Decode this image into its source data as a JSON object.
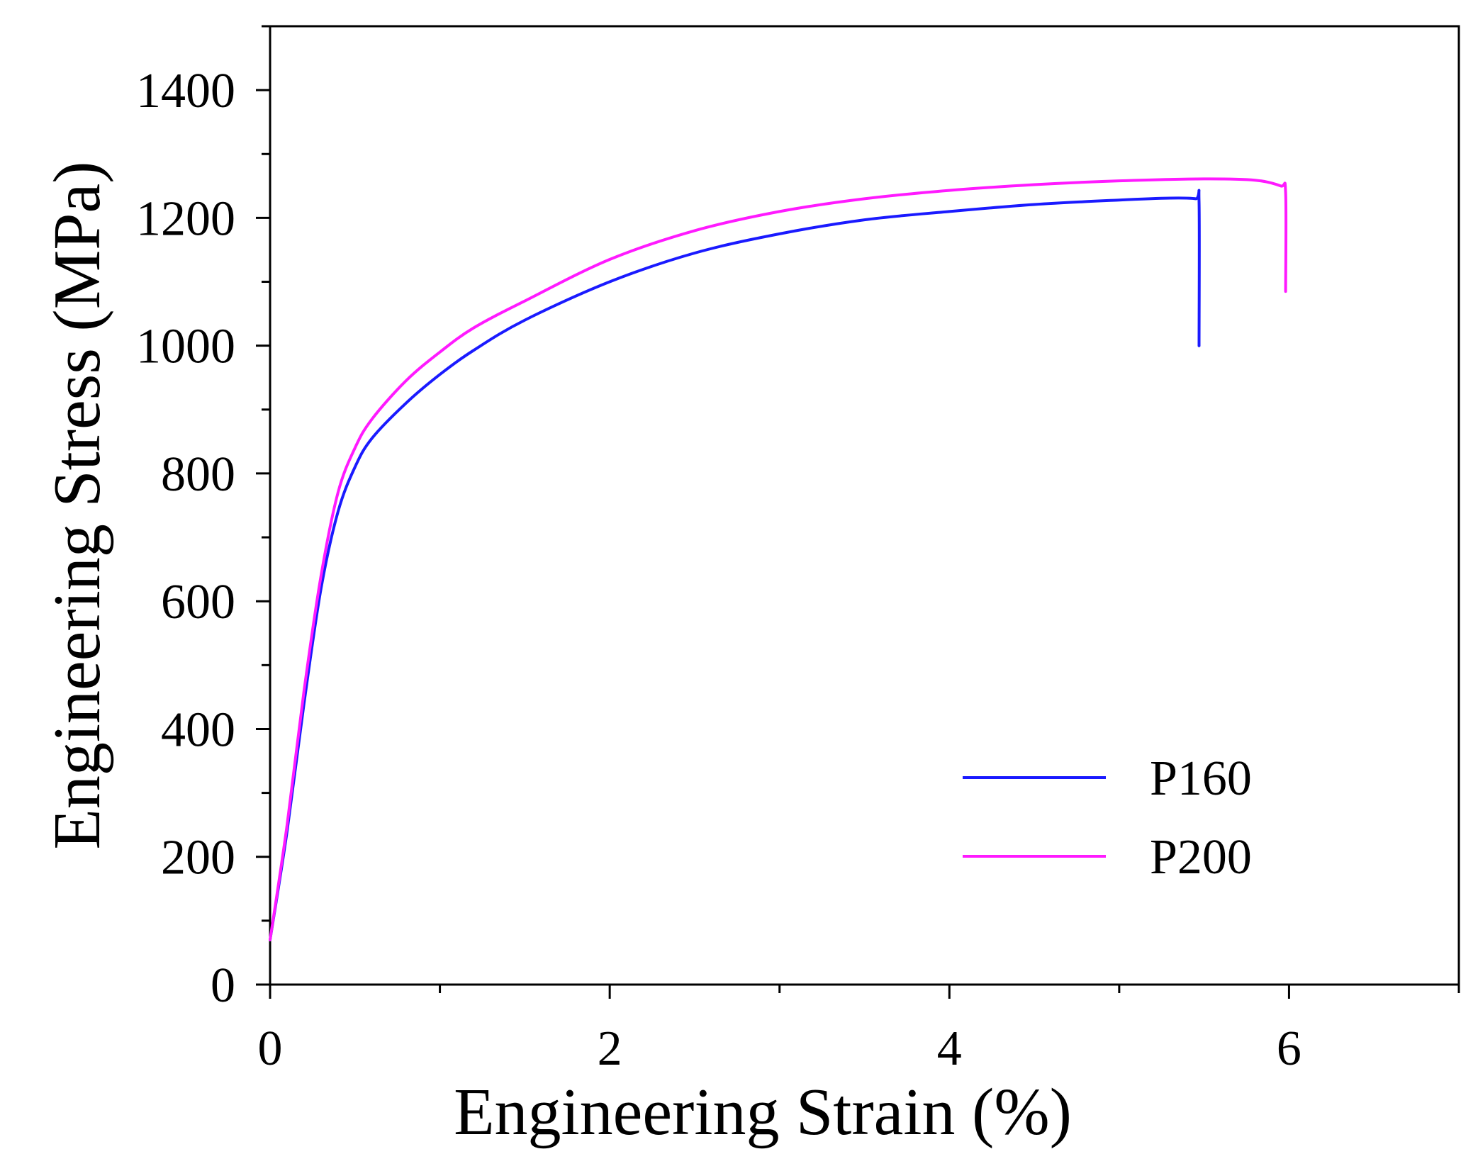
{
  "chart_data": {
    "type": "line",
    "title": "",
    "xlabel": "Engineering Strain (%)",
    "ylabel": "Engineering Stress (MPa)",
    "xlim": [
      0,
      7
    ],
    "ylim": [
      0,
      1500
    ],
    "xticks": [
      0,
      2,
      4,
      6
    ],
    "xminor": [
      1,
      3,
      5,
      7
    ],
    "yticks": [
      0,
      200,
      400,
      600,
      800,
      1000,
      1200,
      1400
    ],
    "yminor": [
      100,
      300,
      500,
      700,
      900,
      1100,
      1300,
      1500
    ],
    "grid": false,
    "legend": {
      "placement": "bottom-right",
      "entries": [
        "P160",
        "P200"
      ]
    },
    "series": [
      {
        "name": "P160",
        "color": "#1a1aff",
        "points": [
          [
            0,
            70
          ],
          [
            0.1,
            240
          ],
          [
            0.2,
            440
          ],
          [
            0.3,
            620
          ],
          [
            0.4,
            740
          ],
          [
            0.5,
            810
          ],
          [
            0.6,
            855
          ],
          [
            0.8,
            910
          ],
          [
            1.0,
            955
          ],
          [
            1.2,
            993
          ],
          [
            1.5,
            1040
          ],
          [
            2.0,
            1100
          ],
          [
            2.5,
            1145
          ],
          [
            3.0,
            1175
          ],
          [
            3.5,
            1197
          ],
          [
            4.0,
            1210
          ],
          [
            4.5,
            1221
          ],
          [
            5.0,
            1228
          ],
          [
            5.3,
            1231
          ],
          [
            5.45,
            1230
          ],
          [
            5.47,
            1225
          ],
          [
            5.47,
            1000
          ]
        ]
      },
      {
        "name": "P200",
        "color": "#ff1aff",
        "points": [
          [
            0,
            70
          ],
          [
            0.1,
            250
          ],
          [
            0.2,
            460
          ],
          [
            0.3,
            640
          ],
          [
            0.4,
            770
          ],
          [
            0.5,
            840
          ],
          [
            0.6,
            885
          ],
          [
            0.8,
            945
          ],
          [
            1.0,
            990
          ],
          [
            1.2,
            1028
          ],
          [
            1.5,
            1070
          ],
          [
            2.0,
            1135
          ],
          [
            2.5,
            1180
          ],
          [
            3.0,
            1210
          ],
          [
            3.5,
            1230
          ],
          [
            4.0,
            1243
          ],
          [
            4.5,
            1252
          ],
          [
            5.0,
            1258
          ],
          [
            5.5,
            1261
          ],
          [
            5.8,
            1259
          ],
          [
            5.95,
            1250
          ],
          [
            5.98,
            1240
          ],
          [
            5.98,
            1085
          ]
        ]
      }
    ]
  }
}
